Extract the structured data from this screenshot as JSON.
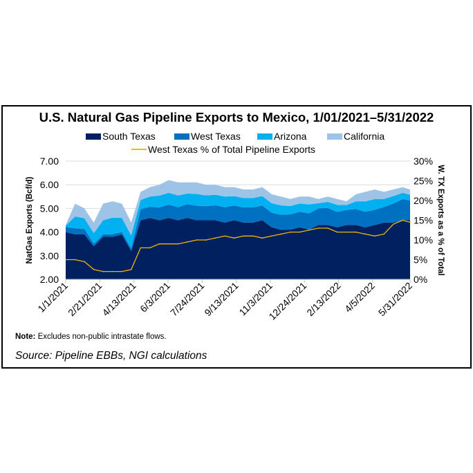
{
  "chart_data": {
    "type": "area",
    "title": "U.S. Natural Gas Pipeline Exports to Mexico, 1/01/2021–5/31/2022",
    "ylabel": "NatGas Exports (Bcf/d)",
    "y2label": "W. TX Exports as a % of Total",
    "ylim": [
      2,
      7
    ],
    "y2lim": [
      0,
      30
    ],
    "yticks": [
      "2.00",
      "3.00",
      "4.00",
      "5.00",
      "6.00",
      "7.00"
    ],
    "y2ticks": [
      "0%",
      "5%",
      "10%",
      "15%",
      "20%",
      "25%",
      "30%"
    ],
    "xticks": [
      "1/1/2021",
      "2/21/2021",
      "4/13/2021",
      "6/3/2021",
      "7/24/2021",
      "9/13/2021",
      "11/3/2021",
      "12/24/2021",
      "2/13/2022",
      "4/5/2022",
      "5/31/2022"
    ],
    "xtick_dates": [
      "2021-01-01",
      "2021-02-21",
      "2021-04-13",
      "2021-06-03",
      "2021-07-24",
      "2021-09-13",
      "2021-11-03",
      "2021-12-24",
      "2022-02-13",
      "2022-04-05",
      "2022-05-31"
    ],
    "grid": true,
    "legend": "top",
    "stacked": true,
    "x": [
      "2021-01-01",
      "2021-01-15",
      "2021-01-29",
      "2021-02-12",
      "2021-02-26",
      "2021-03-12",
      "2021-03-26",
      "2021-04-09",
      "2021-04-23",
      "2021-05-07",
      "2021-05-21",
      "2021-06-04",
      "2021-06-18",
      "2021-07-02",
      "2021-07-16",
      "2021-07-30",
      "2021-08-13",
      "2021-08-27",
      "2021-09-10",
      "2021-09-24",
      "2021-10-08",
      "2021-10-22",
      "2021-11-05",
      "2021-11-19",
      "2021-12-03",
      "2021-12-17",
      "2021-12-31",
      "2022-01-14",
      "2022-01-28",
      "2022-02-11",
      "2022-02-25",
      "2022-03-11",
      "2022-03-25",
      "2022-04-08",
      "2022-04-22",
      "2022-05-06",
      "2022-05-20",
      "2022-05-31"
    ],
    "series": [
      {
        "name": "South Texas",
        "color": "#002060",
        "values": [
          4.0,
          3.9,
          3.9,
          3.4,
          3.8,
          3.8,
          3.9,
          3.2,
          4.5,
          4.6,
          4.5,
          4.6,
          4.5,
          4.6,
          4.5,
          4.5,
          4.5,
          4.4,
          4.5,
          4.4,
          4.4,
          4.5,
          4.2,
          4.1,
          4.1,
          4.2,
          4.1,
          4.3,
          4.3,
          4.2,
          4.3,
          4.3,
          4.2,
          4.3,
          4.4,
          4.4,
          4.5,
          4.5
        ]
      },
      {
        "name": "West Texas",
        "color": "#0070c0",
        "values": [
          0.22,
          0.26,
          0.23,
          0.11,
          0.1,
          0.11,
          0.1,
          0.11,
          0.46,
          0.47,
          0.54,
          0.56,
          0.55,
          0.58,
          0.61,
          0.6,
          0.63,
          0.65,
          0.62,
          0.64,
          0.64,
          0.62,
          0.62,
          0.63,
          0.65,
          0.66,
          0.69,
          0.7,
          0.72,
          0.65,
          0.64,
          0.67,
          0.66,
          0.64,
          0.66,
          0.81,
          0.89,
          0.84
        ]
      },
      {
        "name": "Arizona",
        "color": "#00b0f0",
        "values": [
          0.05,
          0.5,
          0.45,
          0.45,
          0.6,
          0.7,
          0.6,
          0.55,
          0.4,
          0.43,
          0.5,
          0.5,
          0.5,
          0.45,
          0.5,
          0.45,
          0.45,
          0.45,
          0.4,
          0.4,
          0.4,
          0.4,
          0.4,
          0.4,
          0.35,
          0.35,
          0.38,
          0.22,
          0.26,
          0.3,
          0.2,
          0.33,
          0.44,
          0.45,
          0.34,
          0.31,
          0.27,
          0.24
        ]
      },
      {
        "name": "California",
        "color": "#9dc3e6",
        "values": [
          0.03,
          0.54,
          0.42,
          0.44,
          0.7,
          0.69,
          0.6,
          0.54,
          0.34,
          0.4,
          0.46,
          0.54,
          0.55,
          0.47,
          0.49,
          0.45,
          0.42,
          0.4,
          0.38,
          0.36,
          0.36,
          0.38,
          0.38,
          0.37,
          0.3,
          0.29,
          0.33,
          0.18,
          0.22,
          0.25,
          0.16,
          0.3,
          0.4,
          0.41,
          0.3,
          0.28,
          0.24,
          0.22
        ]
      }
    ],
    "line_series": {
      "name": "West Texas % of Total Pipeline Exports",
      "color": "#f2b800",
      "axis": "right",
      "values": [
        5,
        5,
        4.5,
        2.5,
        2,
        2,
        2,
        2.5,
        8,
        8,
        9,
        9,
        9,
        9.5,
        10,
        10,
        10.5,
        11,
        10.5,
        11,
        11,
        10.5,
        11,
        11.5,
        12,
        12,
        12.5,
        13,
        13,
        12,
        12,
        12,
        11.5,
        11,
        11.5,
        14,
        15,
        14.5
      ]
    }
  },
  "note_label": "Note:",
  "note_text": " Excludes non-public intrastate flows.",
  "source": "Source: Pipeline EBBs, NGI calculations"
}
